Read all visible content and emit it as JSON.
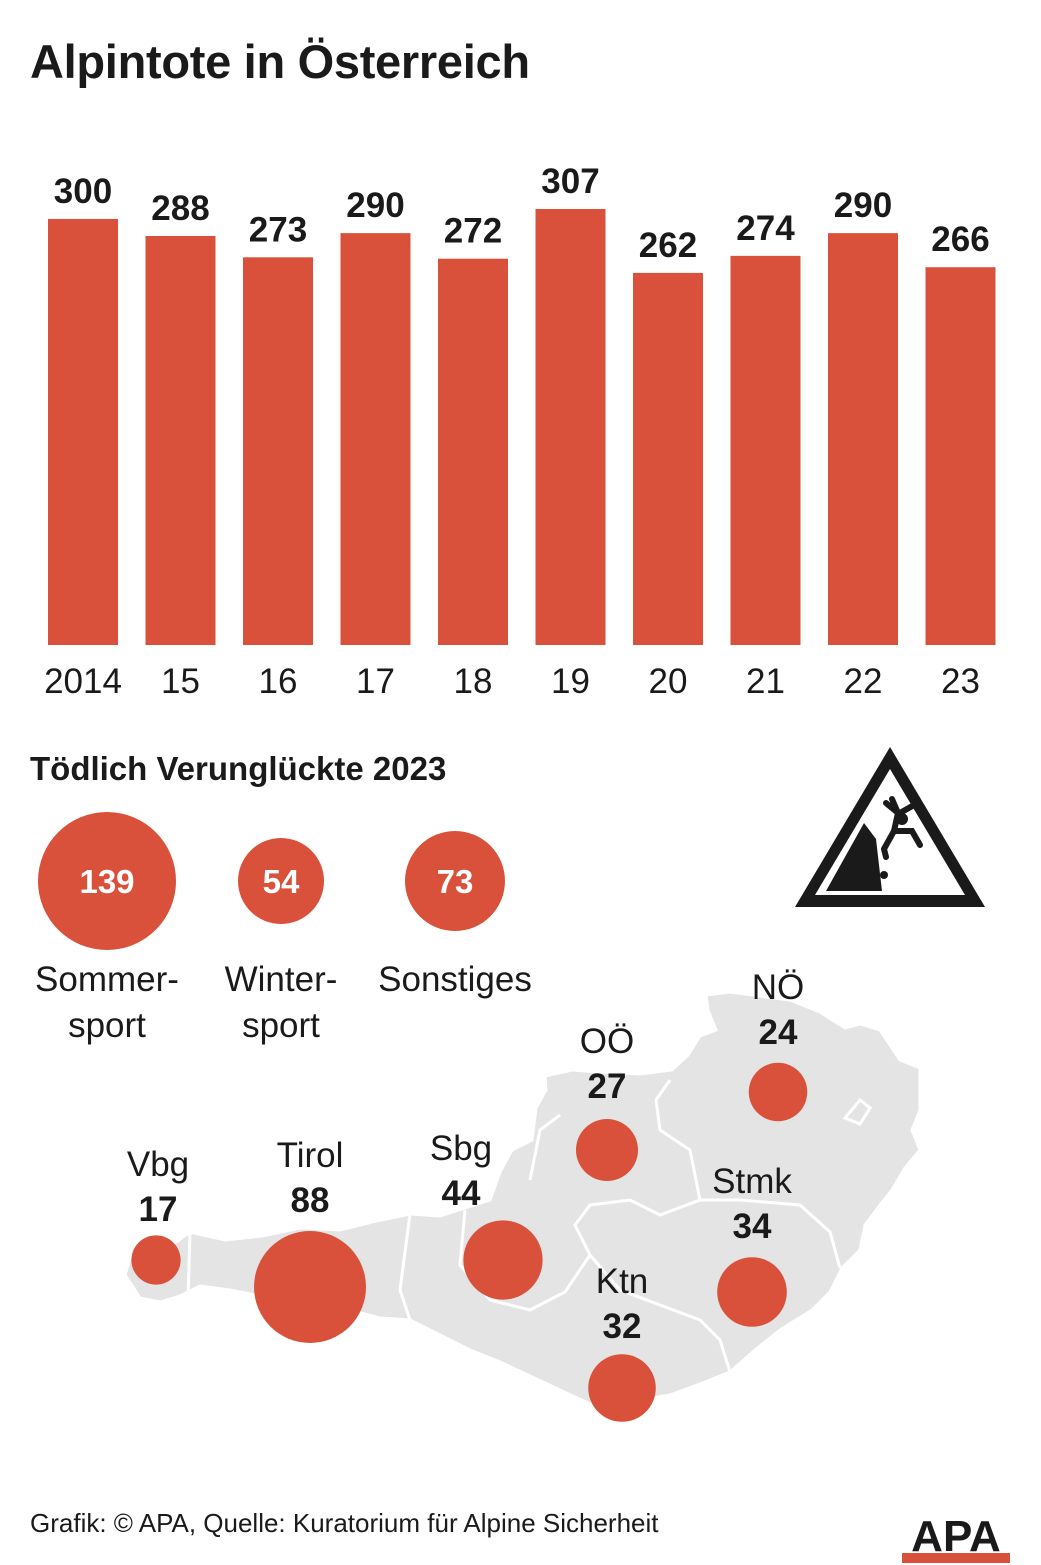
{
  "title": "Alpintote in Österreich",
  "subtitle": "Tödlich Verunglückte 2023",
  "source": "Grafik: © APA, Quelle: Kuratorium für Alpine Sicherheit",
  "logo_text": "APA",
  "colors": {
    "accent": "#d9513a",
    "map": "#e4e4e4",
    "text": "#1a1a1a"
  },
  "warning_sign_icon": "falling-climber-warning-icon",
  "chart_data": [
    {
      "type": "bar",
      "categories": [
        "2014",
        "15",
        "16",
        "17",
        "18",
        "19",
        "20",
        "21",
        "22",
        "23"
      ],
      "values": [
        300,
        288,
        273,
        290,
        272,
        307,
        262,
        274,
        290,
        266
      ],
      "title": "Alpintote in Österreich",
      "xlabel": "",
      "ylabel": "",
      "ylim": [
        0,
        307
      ],
      "grid": false
    },
    {
      "type": "bubble",
      "categories": [
        {
          "label_line1": "Sommer-",
          "label_line2": "sport",
          "value": 139
        },
        {
          "label_line1": "Winter-",
          "label_line2": "sport",
          "value": 54
        },
        {
          "label_line1": "Sonstiges",
          "label_line2": "",
          "value": 73
        }
      ],
      "title": "Tödlich Verunglückte 2023"
    },
    {
      "type": "bubble-map",
      "regions": [
        {
          "name": "Vbg",
          "value": 17
        },
        {
          "name": "Tirol",
          "value": 88
        },
        {
          "name": "Sbg",
          "value": 44
        },
        {
          "name": "OÖ",
          "value": 27
        },
        {
          "name": "NÖ",
          "value": 24
        },
        {
          "name": "Stmk",
          "value": 34
        },
        {
          "name": "Ktn",
          "value": 32
        }
      ]
    }
  ]
}
